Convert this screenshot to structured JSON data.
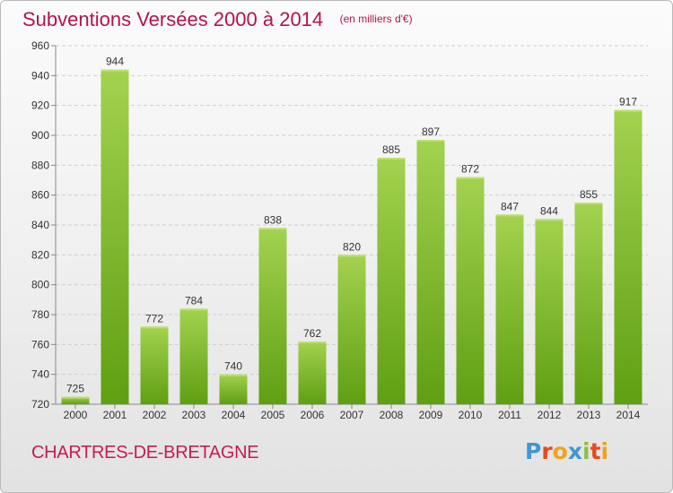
{
  "chart_data": {
    "type": "bar",
    "title": "Subventions Versées 2000 à 2014",
    "subtitle": "(en milliers d'€)",
    "categories": [
      "2000",
      "2001",
      "2002",
      "2003",
      "2004",
      "2005",
      "2006",
      "2007",
      "2008",
      "2009",
      "2010",
      "2011",
      "2012",
      "2013",
      "2014"
    ],
    "values": [
      725,
      944,
      772,
      784,
      740,
      838,
      762,
      820,
      885,
      897,
      872,
      847,
      844,
      855,
      917
    ],
    "ylim": [
      720,
      960
    ],
    "yticks": [
      720,
      740,
      760,
      780,
      800,
      820,
      840,
      860,
      880,
      900,
      920,
      940,
      960
    ],
    "grid": true,
    "xlabel": "",
    "ylabel": "",
    "bar_color_top": "#a3d24f",
    "bar_color_bottom": "#5f9f12"
  },
  "footer": {
    "commune": "CHARTRES-DE-BRETAGNE",
    "logo_letters": [
      "P",
      "r",
      "o",
      "x",
      "i",
      "t",
      "i"
    ],
    "logo_colors": [
      "#3f97d3",
      "#e8491d",
      "#f1a21b",
      "#3f97d3",
      "#8cc23f",
      "#e8491d",
      "#f1a21b"
    ]
  },
  "colors": {
    "title": "#b5124d",
    "commune": "#c31d55"
  }
}
